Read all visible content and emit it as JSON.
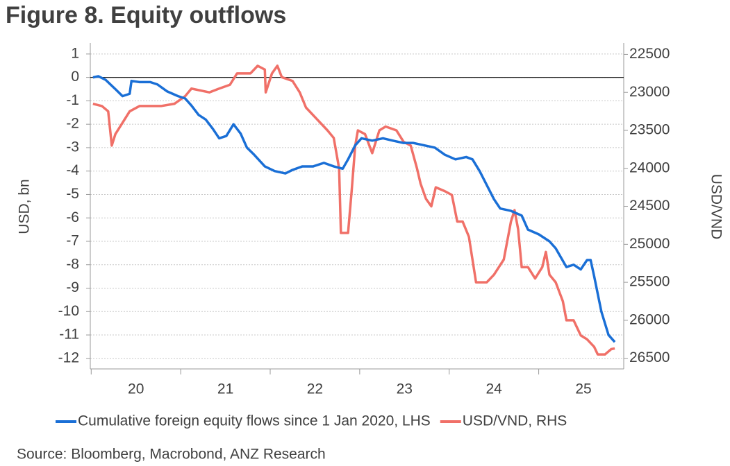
{
  "chart_data": {
    "type": "line",
    "title": "Figure 8. Equity outflows",
    "ylabel": "USD, bn",
    "y2label": "USD/VND",
    "source": "Source: Bloomberg, Macrobond, ANZ Research",
    "xlim": [
      2019.99,
      2025.95
    ],
    "xticks": [
      {
        "value": 2020.5,
        "label": "20"
      },
      {
        "value": 2021.5,
        "label": "21"
      },
      {
        "value": 2022.5,
        "label": "22"
      },
      {
        "value": 2023.5,
        "label": "23"
      },
      {
        "value": 2024.5,
        "label": "24"
      },
      {
        "value": 2025.5,
        "label": "25"
      }
    ],
    "xminor_ticks": [
      2020,
      2021,
      2022,
      2023,
      2024,
      2025
    ],
    "ylim": [
      -12.45,
      1.47
    ],
    "yticks": [
      1,
      0,
      -1,
      -2,
      -3,
      -4,
      -5,
      -6,
      -7,
      -8,
      -9,
      -10,
      -11,
      -12
    ],
    "y2lim": [
      26640,
      22350
    ],
    "y2ticks": [
      22500,
      23000,
      23500,
      24000,
      24500,
      25000,
      25500,
      26000,
      26500
    ],
    "grid": true,
    "legend": "bottom",
    "series": [
      {
        "name": "Cumulative foreign equity flows since 1 Jan 2020, LHS",
        "color": "#1a6fd6",
        "x": [
          2020.02,
          2020.08,
          2020.16,
          2020.27,
          2020.35,
          2020.43,
          2020.45,
          2020.54,
          2020.66,
          2020.74,
          2020.85,
          2020.97,
          2021.05,
          2021.12,
          2021.2,
          2021.28,
          2021.36,
          2021.43,
          2021.51,
          2021.59,
          2021.67,
          2021.74,
          2021.82,
          2021.94,
          2022.05,
          2022.17,
          2022.25,
          2022.36,
          2022.48,
          2022.6,
          2022.71,
          2022.81,
          2022.87,
          2022.95,
          2023.02,
          2023.14,
          2023.26,
          2023.37,
          2023.49,
          2023.6,
          2023.72,
          2023.84,
          2023.95,
          2024.07,
          2024.19,
          2024.26,
          2024.34,
          2024.42,
          2024.5,
          2024.57,
          2024.69,
          2024.81,
          2024.88,
          2025.0,
          2025.12,
          2025.19,
          2025.31,
          2025.39,
          2025.47,
          2025.54,
          2025.58,
          2025.62,
          2025.7,
          2025.78,
          2025.85
        ],
        "values": [
          0,
          0.05,
          -0.1,
          -0.5,
          -0.8,
          -0.7,
          -0.15,
          -0.2,
          -0.2,
          -0.3,
          -0.6,
          -0.8,
          -0.9,
          -1.2,
          -1.6,
          -1.8,
          -2.2,
          -2.6,
          -2.5,
          -2.0,
          -2.4,
          -3.0,
          -3.3,
          -3.8,
          -4.0,
          -4.1,
          -3.95,
          -3.8,
          -3.8,
          -3.65,
          -3.8,
          -3.9,
          -3.5,
          -2.9,
          -2.6,
          -2.7,
          -2.6,
          -2.7,
          -2.8,
          -2.8,
          -2.9,
          -3.0,
          -3.3,
          -3.5,
          -3.4,
          -3.5,
          -4.0,
          -4.6,
          -5.2,
          -5.6,
          -5.7,
          -5.9,
          -6.5,
          -6.7,
          -7.0,
          -7.3,
          -8.1,
          -8.0,
          -8.2,
          -7.8,
          -7.8,
          -8.5,
          -10.0,
          -11.0,
          -11.3
        ]
      },
      {
        "name": "USD/VND, RHS",
        "color": "#f07068",
        "axis": "y2",
        "x": [
          2020.02,
          2020.12,
          2020.19,
          2020.23,
          2020.27,
          2020.35,
          2020.43,
          2020.54,
          2020.78,
          2020.93,
          2021.05,
          2021.12,
          2021.32,
          2021.43,
          2021.55,
          2021.63,
          2021.78,
          2021.86,
          2021.94,
          2021.95,
          2022.02,
          2022.08,
          2022.13,
          2022.25,
          2022.33,
          2022.4,
          2022.52,
          2022.64,
          2022.71,
          2022.77,
          2022.79,
          2022.87,
          2022.91,
          2022.95,
          2022.98,
          2023.06,
          2023.14,
          2023.22,
          2023.29,
          2023.41,
          2023.49,
          2023.57,
          2023.64,
          2023.68,
          2023.74,
          2023.8,
          2023.85,
          2023.95,
          2024.03,
          2024.09,
          2024.15,
          2024.22,
          2024.26,
          2024.3,
          2024.42,
          2024.5,
          2024.61,
          2024.69,
          2024.73,
          2024.77,
          2024.81,
          2024.88,
          2024.96,
          2025.04,
          2025.08,
          2025.12,
          2025.19,
          2025.27,
          2025.31,
          2025.39,
          2025.47,
          2025.54,
          2025.62,
          2025.66,
          2025.74,
          2025.81,
          2025.85
        ],
        "values": [
          23150,
          23180,
          23250,
          23700,
          23550,
          23400,
          23250,
          23180,
          23180,
          23150,
          23050,
          22950,
          23000,
          22950,
          22900,
          22750,
          22750,
          22650,
          22700,
          23000,
          22750,
          22650,
          22800,
          22850,
          23000,
          23200,
          23350,
          23500,
          23600,
          24000,
          24850,
          24850,
          24300,
          23700,
          23500,
          23550,
          23800,
          23500,
          23450,
          23500,
          23650,
          23700,
          24000,
          24200,
          24400,
          24500,
          24250,
          24300,
          24350,
          24700,
          24700,
          24900,
          25200,
          25500,
          25500,
          25400,
          25200,
          24700,
          24550,
          24800,
          25300,
          25300,
          25450,
          25300,
          25100,
          25400,
          25500,
          25750,
          26000,
          26000,
          26200,
          26250,
          26350,
          26450,
          26450,
          26380,
          26370
        ]
      }
    ]
  }
}
